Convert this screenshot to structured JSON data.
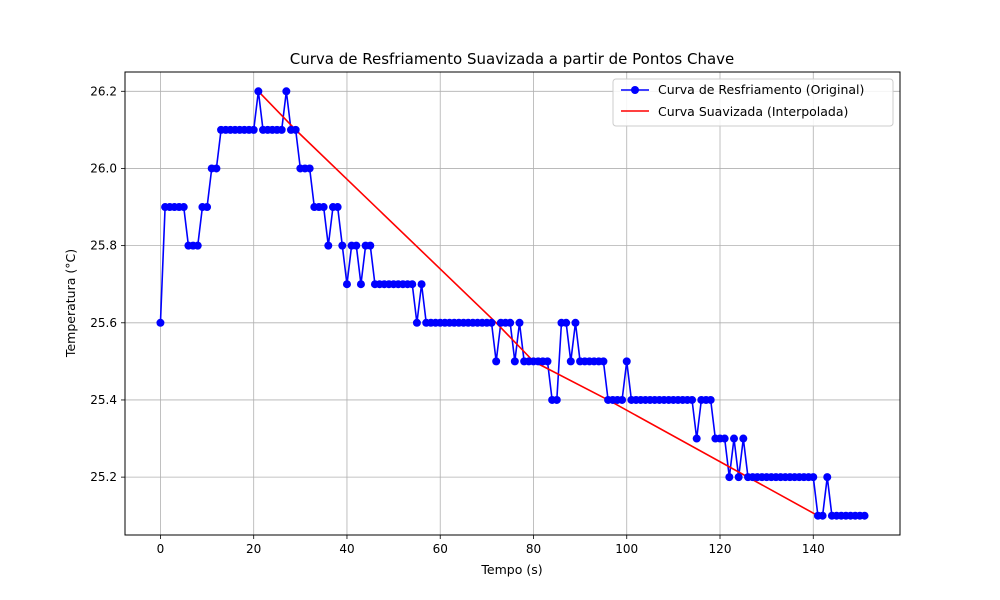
{
  "chart_data": {
    "type": "line",
    "title": "Curva de Resfriamento Suavizada a partir de Pontos Chave",
    "xlabel": "Tempo (s)",
    "ylabel": "Temperatura (°C)",
    "xlim": [
      -7.6,
      158.6
    ],
    "ylim": [
      25.05,
      26.25
    ],
    "xticks": [
      0,
      20,
      40,
      60,
      80,
      100,
      120,
      140
    ],
    "yticks": [
      25.2,
      25.4,
      25.6,
      25.8,
      26.0,
      26.2
    ],
    "xtick_labels": [
      "0",
      "20",
      "40",
      "60",
      "80",
      "100",
      "120",
      "140"
    ],
    "ytick_labels": [
      "25.2",
      "25.4",
      "25.6",
      "25.8",
      "26.0",
      "26.2"
    ],
    "grid": true,
    "legend_position": "top-right",
    "series": [
      {
        "name": "Curva de Resfriamento (Original)",
        "color": "#0000ff",
        "marker": "circle",
        "x_start": 0,
        "x_step": 1,
        "y": [
          25.6,
          25.9,
          25.9,
          25.9,
          25.9,
          25.9,
          25.8,
          25.8,
          25.8,
          25.9,
          25.9,
          26.0,
          26.0,
          26.1,
          26.1,
          26.1,
          26.1,
          26.1,
          26.1,
          26.1,
          26.1,
          26.2,
          26.1,
          26.1,
          26.1,
          26.1,
          26.1,
          26.2,
          26.1,
          26.1,
          26.0,
          26.0,
          26.0,
          25.9,
          25.9,
          25.9,
          25.8,
          25.9,
          25.9,
          25.8,
          25.7,
          25.8,
          25.8,
          25.7,
          25.8,
          25.8,
          25.7,
          25.7,
          25.7,
          25.7,
          25.7,
          25.7,
          25.7,
          25.7,
          25.7,
          25.6,
          25.7,
          25.6,
          25.6,
          25.6,
          25.6,
          25.6,
          25.6,
          25.6,
          25.6,
          25.6,
          25.6,
          25.6,
          25.6,
          25.6,
          25.6,
          25.6,
          25.5,
          25.6,
          25.6,
          25.6,
          25.5,
          25.6,
          25.5,
          25.5,
          25.5,
          25.5,
          25.5,
          25.5,
          25.4,
          25.4,
          25.6,
          25.6,
          25.5,
          25.6,
          25.5,
          25.5,
          25.5,
          25.5,
          25.5,
          25.5,
          25.4,
          25.4,
          25.4,
          25.4,
          25.5,
          25.4,
          25.4,
          25.4,
          25.4,
          25.4,
          25.4,
          25.4,
          25.4,
          25.4,
          25.4,
          25.4,
          25.4,
          25.4,
          25.4,
          25.3,
          25.4,
          25.4,
          25.4,
          25.3,
          25.3,
          25.3,
          25.2,
          25.3,
          25.2,
          25.3,
          25.2,
          25.2,
          25.2,
          25.2,
          25.2,
          25.2,
          25.2,
          25.2,
          25.2,
          25.2,
          25.2,
          25.2,
          25.2,
          25.2,
          25.2,
          25.1,
          25.1,
          25.2,
          25.1,
          25.1,
          25.1,
          25.1,
          25.1,
          25.1,
          25.1,
          25.1
        ]
      },
      {
        "name": "Curva Suavizada (Interpolada)",
        "color": "#ff0000",
        "marker": "none",
        "x": [
          21,
          29,
          72,
          80,
          96,
          141
        ],
        "y": [
          26.2,
          26.1,
          25.6,
          25.5,
          25.4,
          25.1
        ]
      }
    ]
  }
}
